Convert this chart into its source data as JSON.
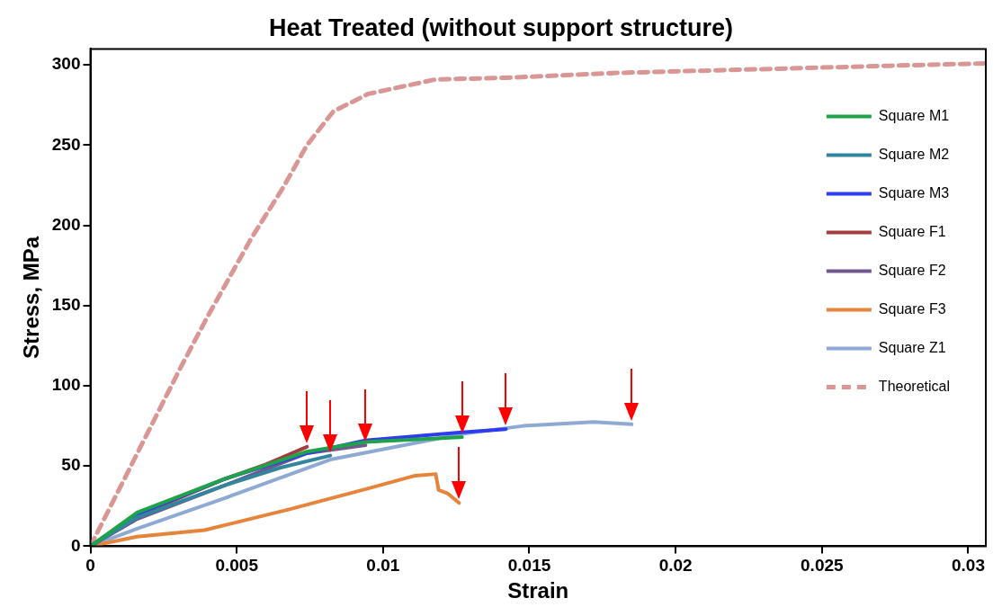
{
  "chart_data": {
    "type": "line",
    "title": "Heat Treated (without support structure)",
    "xlabel": "Strain",
    "ylabel": "Stress, MPa",
    "xlim": [
      0,
      0.0306
    ],
    "xticks": [
      0,
      0.005,
      0.01,
      0.015,
      0.02,
      0.025,
      0.03
    ],
    "ylim": [
      0,
      310
    ],
    "yticks": [
      0,
      50,
      100,
      150,
      200,
      250,
      300
    ],
    "grid": false,
    "legend": "top right",
    "marker": "none",
    "line_style": "solid",
    "series": [
      {
        "name": "Square M1",
        "color": "#1fa34a",
        "x": [
          0,
          0.0016,
          0.0046,
          0.0074,
          0.0094,
          0.0127
        ],
        "values": [
          0,
          21,
          42,
          59,
          65,
          68
        ]
      },
      {
        "name": "Square M2",
        "color": "#31859c",
        "x": [
          0,
          0.0016,
          0.0046,
          0.0065,
          0.0082
        ],
        "values": [
          0,
          18,
          38,
          49,
          56.5
        ]
      },
      {
        "name": "Square M3",
        "color": "#2e3cf0",
        "x": [
          0,
          0.0016,
          0.0046,
          0.0074,
          0.0094,
          0.0127,
          0.0142
        ],
        "values": [
          0,
          20,
          42,
          58,
          66,
          71,
          73
        ]
      },
      {
        "name": "Square F1",
        "color": "#a33c3c",
        "x": [
          0,
          0.0016,
          0.0046,
          0.006,
          0.0074
        ],
        "values": [
          0,
          19,
          42,
          51,
          62
        ]
      },
      {
        "name": "Square F2",
        "color": "#71588f",
        "x": [
          0,
          0.0016,
          0.0046,
          0.0074,
          0.0094
        ],
        "values": [
          0,
          17,
          38,
          58,
          63
        ]
      },
      {
        "name": "Square F3",
        "color": "#e5843a",
        "x": [
          0,
          0.0016,
          0.0039,
          0.0068,
          0.0095,
          0.0111,
          0.0118,
          0.0119,
          0.0122,
          0.0126
        ],
        "values": [
          0,
          6,
          10,
          23,
          36,
          44,
          45,
          35,
          33,
          27
        ]
      },
      {
        "name": "Square Z1",
        "color": "#8ea9d4",
        "x": [
          0,
          0.0016,
          0.0046,
          0.0082,
          0.0127,
          0.0148,
          0.0172,
          0.0185
        ],
        "values": [
          0,
          11,
          30,
          54,
          70,
          75,
          77.5,
          76
        ]
      },
      {
        "name": "Theoretical",
        "color": "#d99694",
        "line_style": "dashed",
        "x": [
          0,
          0.0031,
          0.004,
          0.0055,
          0.0066,
          0.0074,
          0.0083,
          0.0095,
          0.0118,
          0.0142,
          0.0179,
          0.0242,
          0.0273,
          0.0306
        ],
        "values": [
          0,
          112,
          143,
          192,
          224,
          250,
          271,
          282,
          291,
          292,
          295,
          298,
          299.5,
          301
        ]
      }
    ]
  }
}
